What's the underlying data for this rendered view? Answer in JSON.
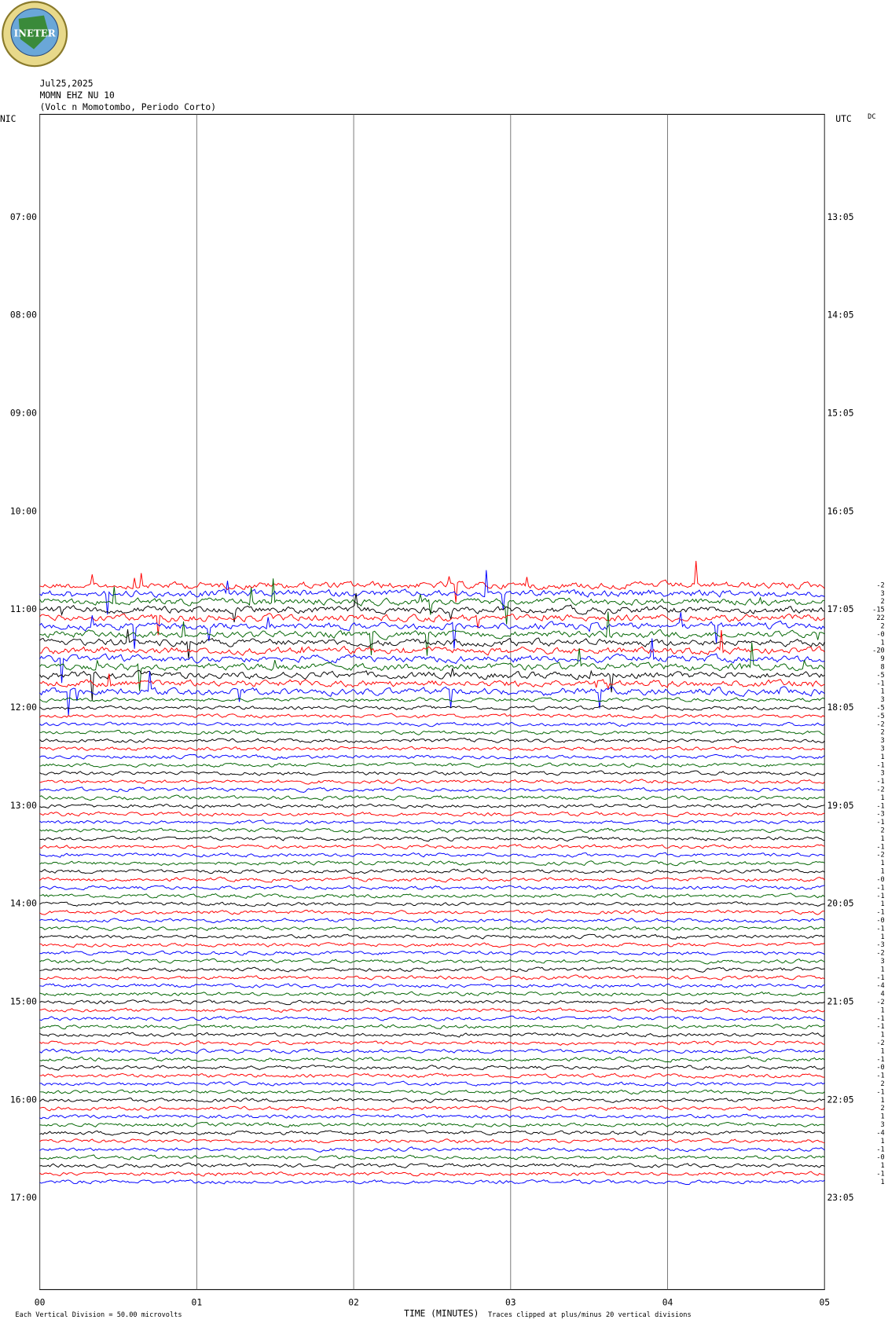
{
  "chart_data": {
    "type": "helicorder",
    "logo_text": "INETER",
    "title_lines": [
      "Jul25,2025",
      "MOMN EHZ NU 10",
      "(Volc n Momotombo, Periodo Corto)"
    ],
    "left_zone": "NIC",
    "right_zone": "UTC",
    "dc_label": "DC",
    "x_label": "TIME (MINUTES)",
    "xlim": [
      0,
      5
    ],
    "xticks": [
      {
        "value": 0,
        "label": "00"
      },
      {
        "value": 1,
        "label": "01"
      },
      {
        "value": 2,
        "label": "02"
      },
      {
        "value": 3,
        "label": "03"
      },
      {
        "value": 4,
        "label": "04"
      },
      {
        "value": 5,
        "label": "05"
      }
    ],
    "nic_times": [
      "07:00",
      "08:00",
      "09:00",
      "10:00",
      "11:00",
      "12:00",
      "13:00",
      "14:00",
      "15:00",
      "16:00",
      "17:00"
    ],
    "utc_times": [
      "13:05",
      "14:05",
      "15:05",
      "16:05",
      "17:05",
      "18:05",
      "19:05",
      "20:05",
      "21:05",
      "22:05",
      "23:05"
    ],
    "dc_offsets": [
      "-2",
      "3",
      "2",
      "-15",
      "22",
      "2",
      "-0",
      "1",
      "-20",
      "9",
      "8",
      "-5",
      "-1",
      "1",
      "3",
      "-5",
      "-5",
      "-2",
      "2",
      "3",
      "3",
      "1",
      "-1",
      "3",
      "-1",
      "-2",
      "1",
      "-1",
      "-3",
      "-1",
      "2",
      "1",
      "-1",
      "-2",
      "1",
      "1",
      "-0",
      "-1",
      "-1",
      "1",
      "-1",
      "-0",
      "-1",
      "1",
      "-3",
      "-2",
      "3",
      "1",
      "-1",
      "-4",
      "4",
      "-2",
      "1",
      "-1",
      "-1",
      "1",
      "-2",
      "1",
      "-1",
      "-0",
      "-1",
      "2",
      "-1",
      "1",
      "2",
      "1",
      "3",
      "-4",
      "1",
      "-1",
      "-0",
      "1",
      "-1",
      "1"
    ],
    "trace_colors": [
      "#000000",
      "#ff0000",
      "#0000ff",
      "#006400"
    ],
    "scale_note": "Each Vertical Division =   50.00 microvolts",
    "clip_note": "Traces clipped at plus/minus 20 vertical divisions"
  }
}
